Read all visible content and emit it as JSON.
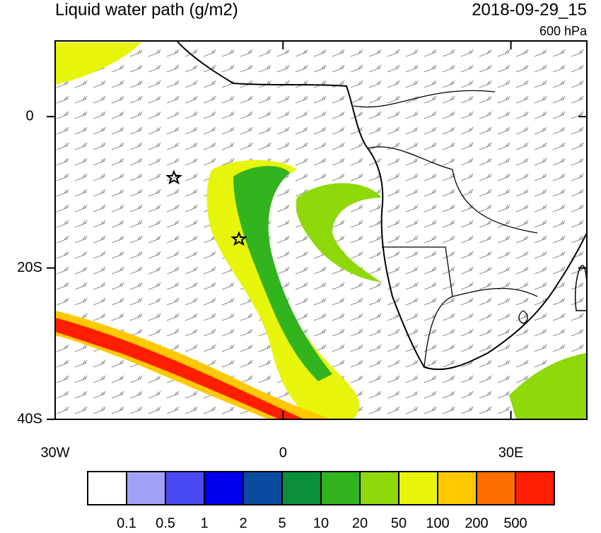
{
  "map": {
    "title": "Liquid water path (g/m2)",
    "date": "2018-09-29_15",
    "level": "600 hPa",
    "lon_range": [
      -30,
      40
    ],
    "lat_range": [
      10,
      -40
    ],
    "lon_ticks": [
      {
        "value": -30,
        "label": "30W"
      },
      0,
      {
        "value": 30,
        "label": "30E"
      }
    ],
    "lat_ticks": [
      0,
      {
        "value": -20,
        "label": "20S"
      },
      {
        "value": -40,
        "label": "40S"
      }
    ],
    "colorbar": {
      "levels": [
        0.1,
        0.5,
        1,
        2,
        5,
        10,
        20,
        50,
        100,
        200,
        500
      ],
      "colors": [
        "#ffffff",
        "#a0a0f5",
        "#4a4af5",
        "#0000ef",
        "#0a4aa0",
        "#0a8f3a",
        "#32b41e",
        "#8fd80a",
        "#e6f50a",
        "#ffc800",
        "#ff6e00",
        "#ff1e00"
      ]
    }
  }
}
